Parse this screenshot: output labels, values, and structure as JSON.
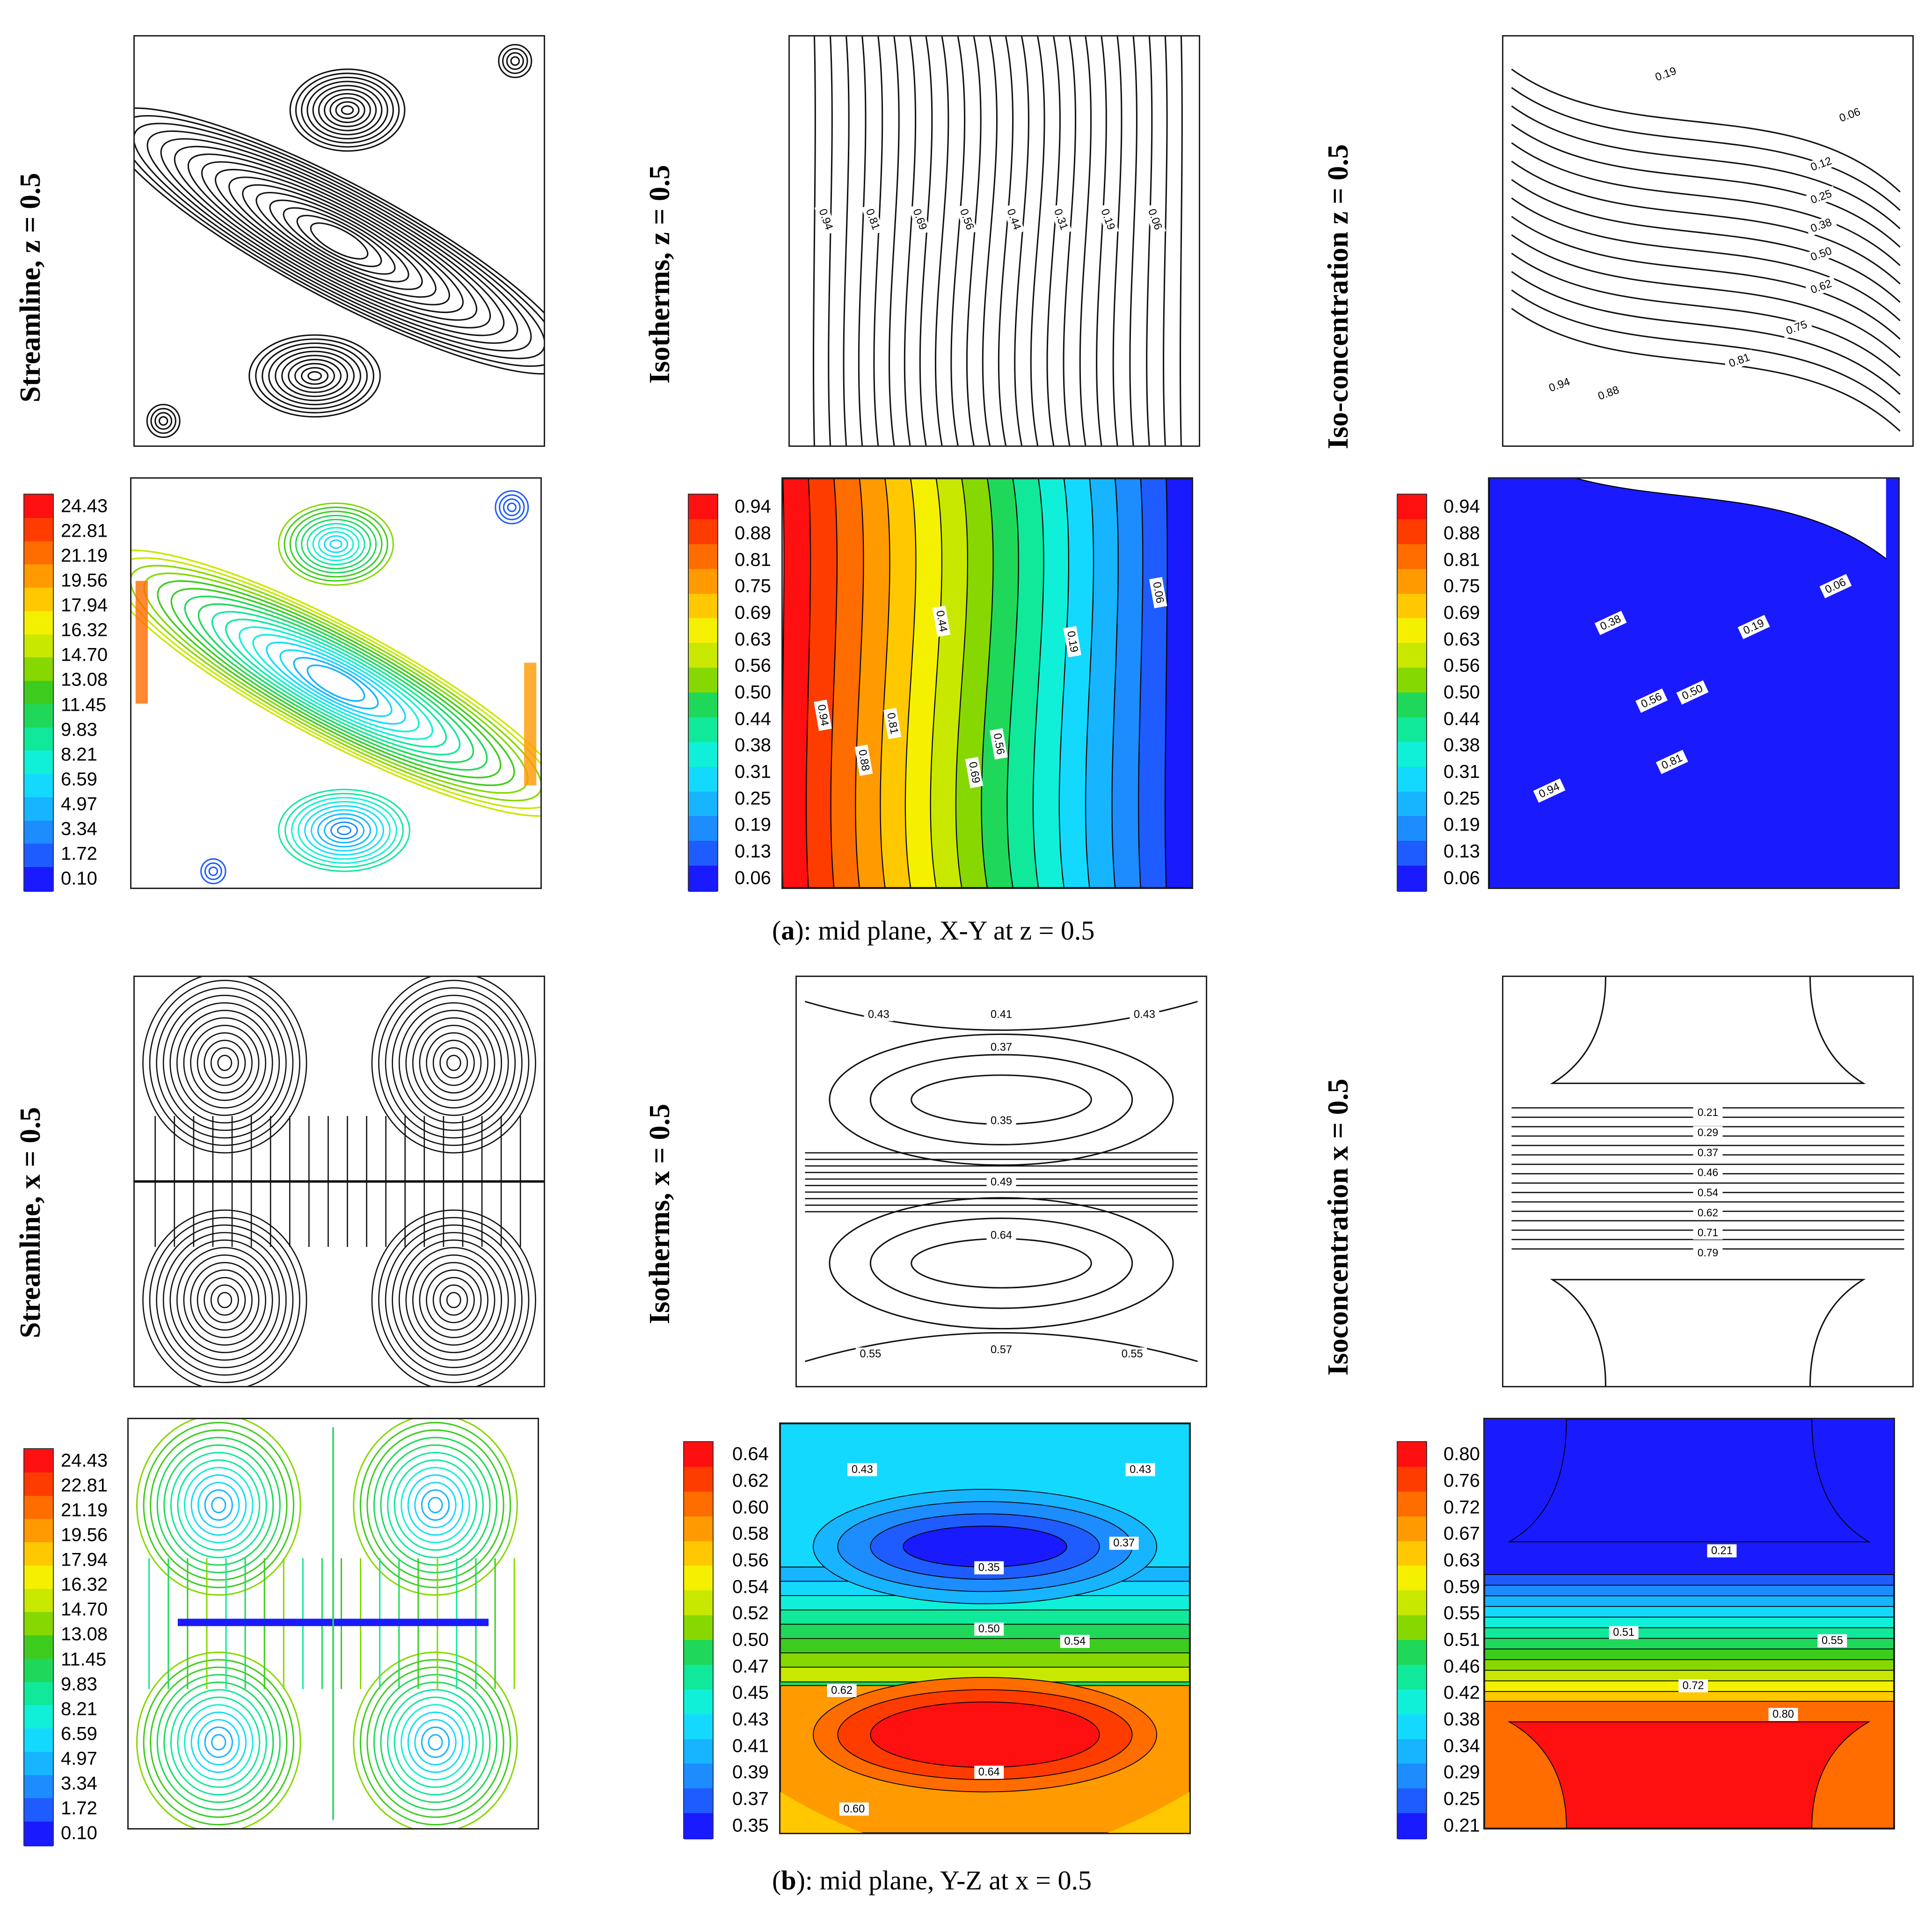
{
  "row_labels": {
    "a_streamline": "Streamline, z = 0.5",
    "a_isotherms": "Isotherms, z = 0.5",
    "a_isoconc": "Iso-concentration z = 0.5",
    "b_streamline": "Streamline, x = 0.5",
    "b_isotherms": "Isotherms, x = 0.5",
    "b_isoconc": "Isoconcentration x = 0.5"
  },
  "captions": {
    "a_letter": "a",
    "a_text": "): mid plane, X-Y at z = 0.5",
    "b_letter": "b",
    "b_text": "): mid plane, Y-Z at x = 0.5",
    "open_paren": "("
  },
  "colors": {
    "palette": [
      "#1a1aff",
      "#1f5cff",
      "#1c8cff",
      "#17b4ff",
      "#14d9ff",
      "#10f0d8",
      "#10e89a",
      "#1fd85a",
      "#3dcc1e",
      "#86d800",
      "#c8e800",
      "#f4f000",
      "#ffc800",
      "#ff9a00",
      "#ff6c00",
      "#ff3c00",
      "#ff1010"
    ],
    "stream_black": "#111111"
  },
  "colorbars": {
    "streamline": [
      "24.43",
      "22.81",
      "21.19",
      "19.56",
      "17.94",
      "16.32",
      "14.70",
      "13.08",
      "11.45",
      "9.83",
      "8.21",
      "6.59",
      "4.97",
      "3.34",
      "1.72",
      "0.10"
    ],
    "a_temperature": [
      "0.94",
      "0.88",
      "0.81",
      "0.75",
      "0.69",
      "0.63",
      "0.56",
      "0.50",
      "0.44",
      "0.38",
      "0.31",
      "0.25",
      "0.19",
      "0.13",
      "0.06"
    ],
    "a_concentration": [
      "0.94",
      "0.88",
      "0.81",
      "0.75",
      "0.69",
      "0.63",
      "0.56",
      "0.50",
      "0.44",
      "0.38",
      "0.31",
      "0.25",
      "0.19",
      "0.13",
      "0.06"
    ],
    "b_temperature": [
      "0.64",
      "0.62",
      "0.60",
      "0.58",
      "0.56",
      "0.54",
      "0.52",
      "0.50",
      "0.47",
      "0.45",
      "0.43",
      "0.41",
      "0.39",
      "0.37",
      "0.35"
    ],
    "b_concentration": [
      "0.80",
      "0.76",
      "0.72",
      "0.67",
      "0.63",
      "0.59",
      "0.55",
      "0.51",
      "0.46",
      "0.42",
      "0.38",
      "0.34",
      "0.29",
      "0.25",
      "0.21"
    ]
  },
  "chart_data": [
    {
      "type": "contour",
      "title": "Isotherms, z = 0.5 (mid plane X-Y)",
      "contour_labels": [
        "0.94",
        "0.81",
        "0.69",
        "0.56",
        "0.44",
        "0.31",
        "0.19",
        "0.06"
      ],
      "colored_labels": [
        "0.94",
        "0.88",
        "0.81",
        "0.69",
        "0.56",
        "0.44",
        "0.19",
        "0.06"
      ],
      "range": [
        0.06,
        0.94
      ]
    },
    {
      "type": "contour",
      "title": "Iso-concentration z = 0.5 (mid plane X-Y)",
      "contour_labels": [
        "0.19",
        "0.06",
        "0.12",
        "0.25",
        "0.38",
        "0.50",
        "0.62",
        "0.75",
        "0.81",
        "0.88",
        "0.94"
      ],
      "colored_labels": [
        "0.06",
        "0.19",
        "0.38",
        "0.50",
        "0.56",
        "0.81",
        "0.94"
      ],
      "range": [
        0.06,
        0.94
      ]
    },
    {
      "type": "contour",
      "title": "Isotherms, x = 0.5 (mid plane Y-Z)",
      "contour_labels": [
        "0.43",
        "0.41",
        "0.43",
        "0.37",
        "0.35",
        "0.49",
        "0.64",
        "0.55",
        "0.57",
        "0.55"
      ],
      "colored_labels": [
        "0.43",
        "0.43",
        "0.37",
        "0.35",
        "0.50",
        "0.54",
        "0.62",
        "0.64",
        "0.60"
      ],
      "range": [
        0.35,
        0.64
      ]
    },
    {
      "type": "contour",
      "title": "Isoconcentration x = 0.5 (mid plane Y-Z)",
      "contour_labels": [
        "0.21",
        "0.29",
        "0.37",
        "0.46",
        "0.54",
        "0.62",
        "0.71",
        "0.79"
      ],
      "colored_labels": [
        "0.21",
        "0.51",
        "0.55",
        "0.72",
        "0.80"
      ],
      "range": [
        0.21,
        0.8
      ]
    },
    {
      "type": "streamline",
      "title": "Streamline, z = 0.5 / x = 0.5",
      "velocity_range": [
        0.1,
        24.43
      ]
    }
  ]
}
